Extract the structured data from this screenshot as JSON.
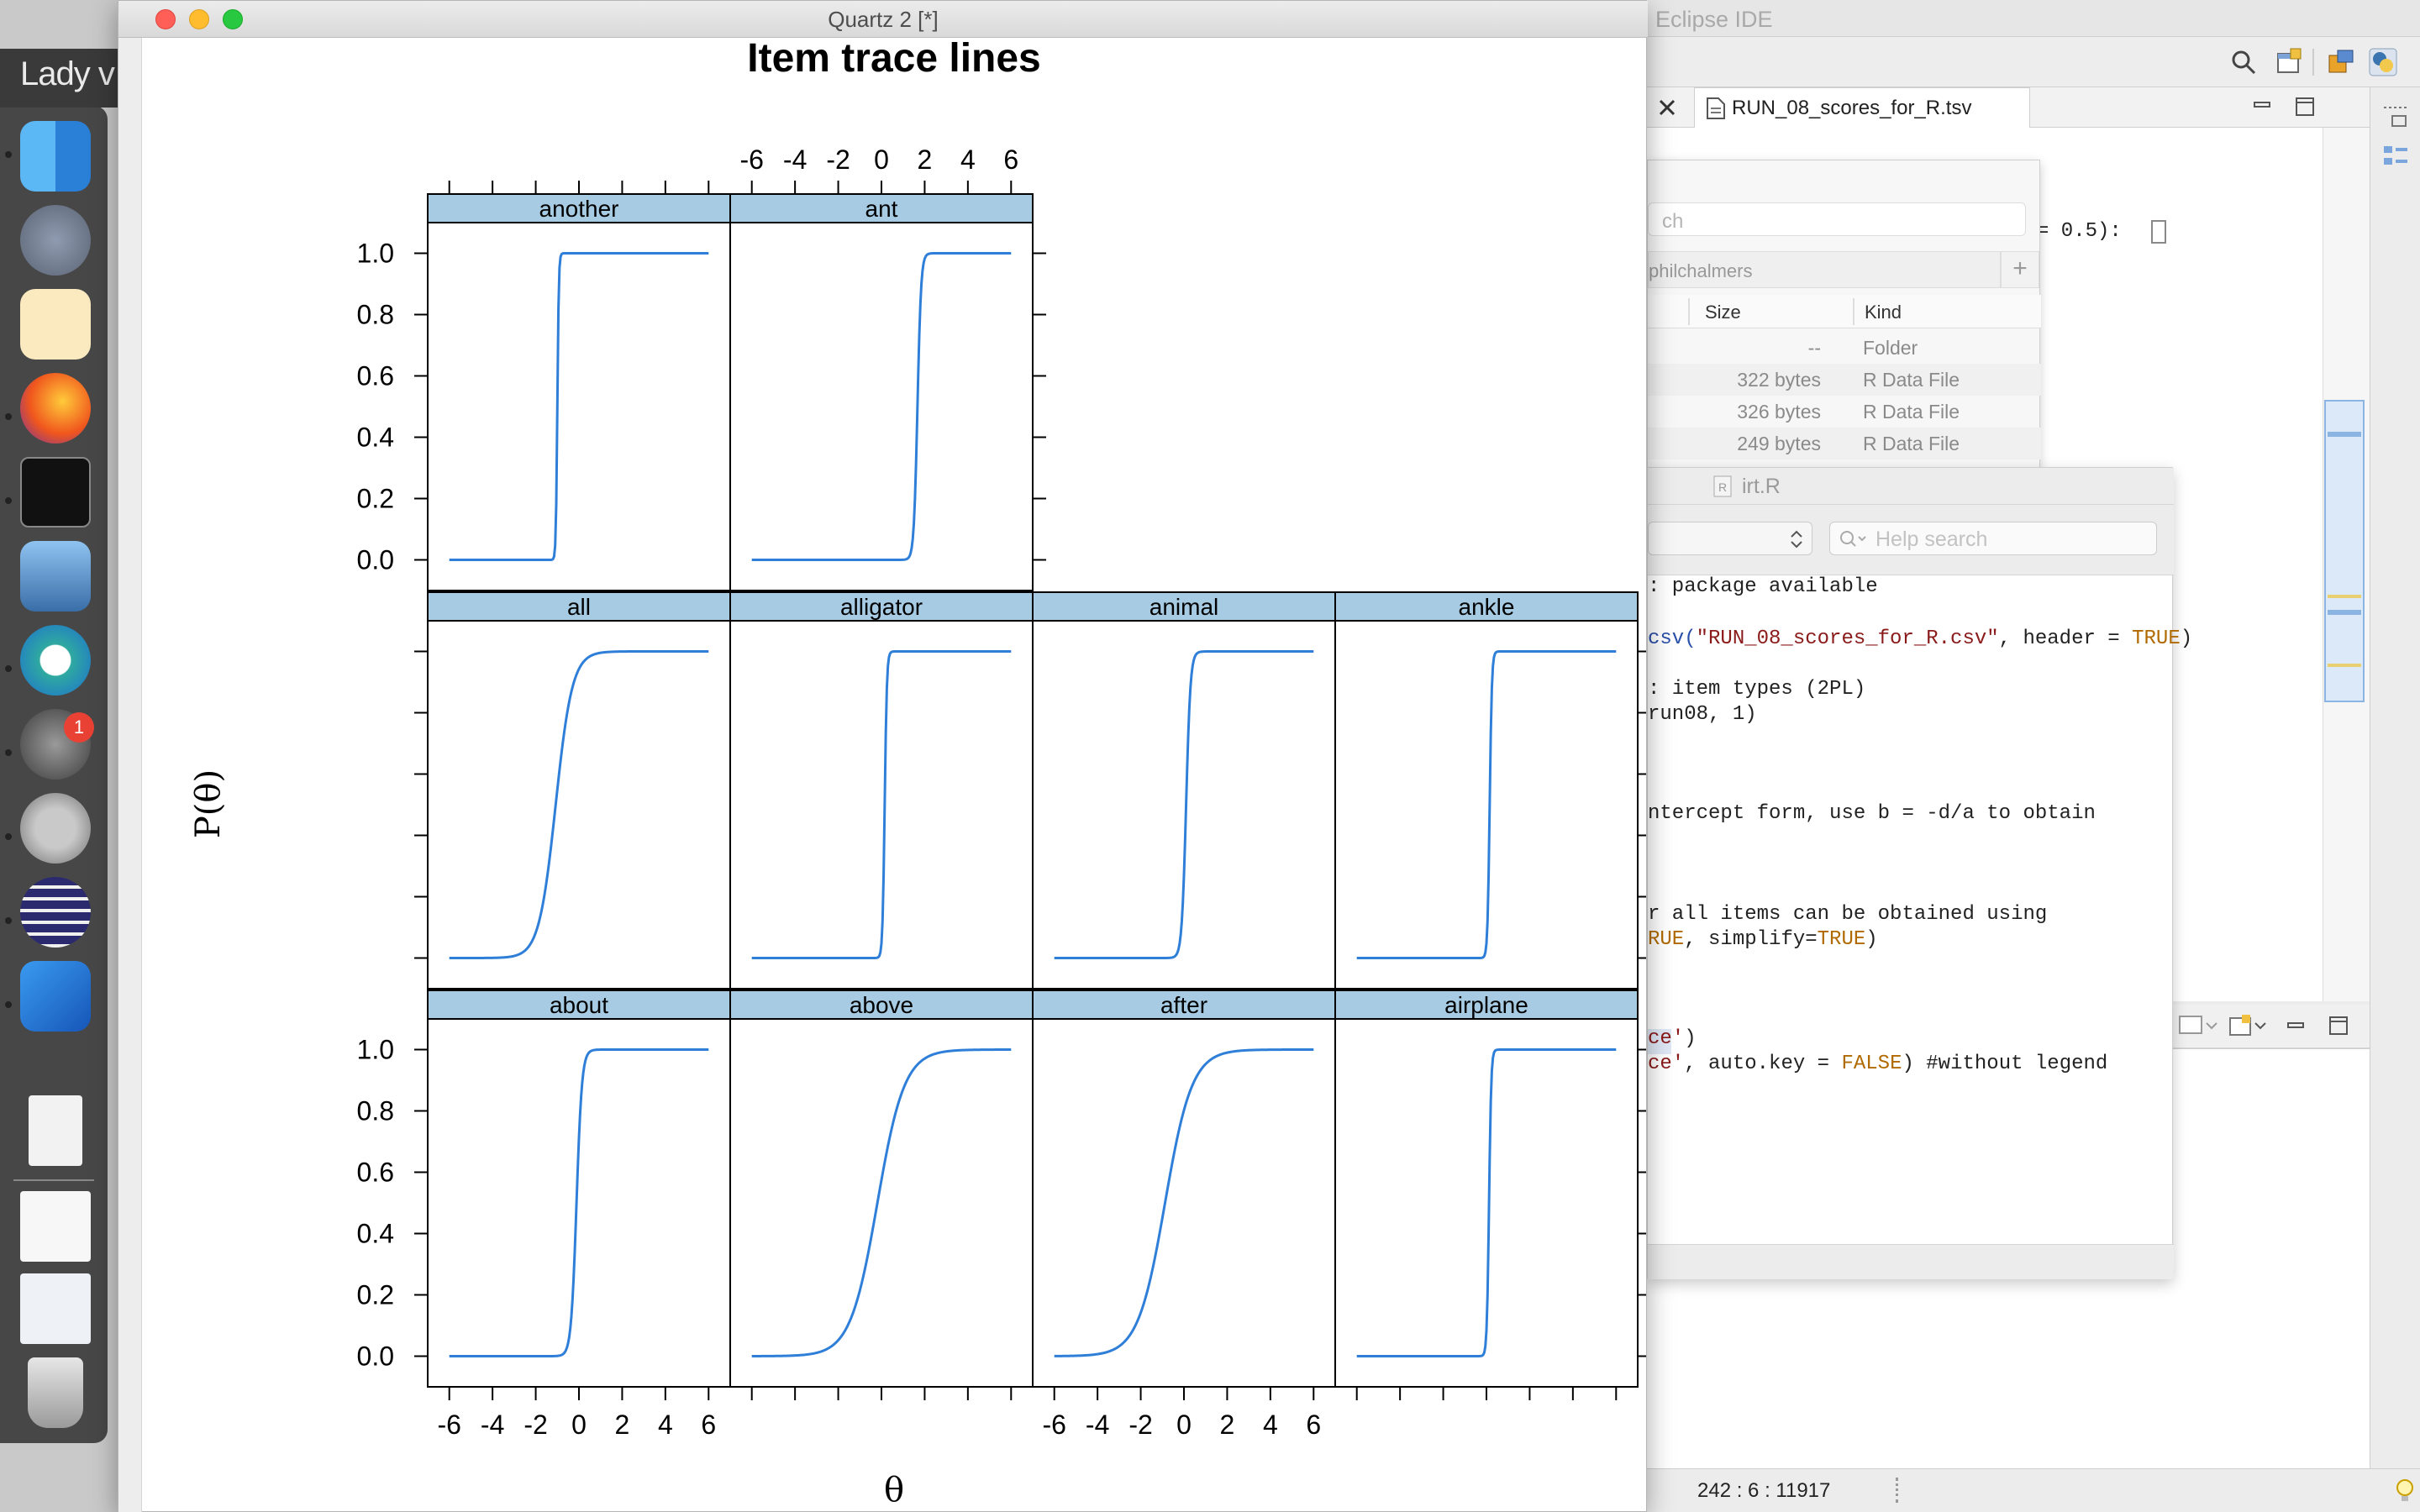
{
  "desktop": {
    "partial_text": "Lady v"
  },
  "quartz": {
    "title": "Quartz 2 [*]",
    "chart_data": {
      "type": "line",
      "title": "Item trace lines",
      "xlabel": "θ",
      "ylabel": "P(θ)",
      "xlim": [
        -7,
        7
      ],
      "ylim": [
        -0.1,
        1.1
      ],
      "x_ticks": [
        "-6",
        "-4",
        "-2",
        "0",
        "2",
        "4",
        "6"
      ],
      "y_ticks": [
        "0.0",
        "0.2",
        "0.4",
        "0.6",
        "0.8",
        "1.0"
      ],
      "grid": false,
      "color": "#2f7fd9",
      "panels": [
        {
          "name": "about",
          "row": 1,
          "col": 1,
          "a": 8.0,
          "d": 0.9
        },
        {
          "name": "above",
          "row": 1,
          "col": 2,
          "a": 1.6,
          "d": 0.3
        },
        {
          "name": "after",
          "row": 1,
          "col": 3,
          "a": 1.6,
          "d": 1.4
        },
        {
          "name": "airplane",
          "row": 1,
          "col": 4,
          "a": 20.0,
          "d": -2.4
        },
        {
          "name": "all",
          "row": 2,
          "col": 1,
          "a": 2.6,
          "d": 2.8
        },
        {
          "name": "alligator",
          "row": 2,
          "col": 2,
          "a": 20.0,
          "d": -3.0
        },
        {
          "name": "animal",
          "row": 2,
          "col": 3,
          "a": 10.0,
          "d": -1.0
        },
        {
          "name": "ankle",
          "row": 2,
          "col": 4,
          "a": 20.0,
          "d": -3.0
        },
        {
          "name": "another",
          "row": 3,
          "col": 1,
          "a": 30.0,
          "d": 30.0
        },
        {
          "name": "ant",
          "row": 3,
          "col": 2,
          "a": 12.0,
          "d": -20.0
        }
      ]
    }
  },
  "eclipse": {
    "title": "Eclipse IDE",
    "editor_tab": "RUN_08_scores_for_R.tsv",
    "code_fragment": "= 0.5):",
    "status": "242 : 6 : 11917"
  },
  "file_browser": {
    "search_placeholder": "ch",
    "path": "philchalmers",
    "add_label": "+",
    "col_size": "Size",
    "col_kind": "Kind",
    "rows": [
      {
        "size": "--",
        "kind": "Folder"
      },
      {
        "size": "322 bytes",
        "kind": "R Data File"
      },
      {
        "size": "326 bytes",
        "kind": "R Data File"
      },
      {
        "size": "249 bytes",
        "kind": "R Data File"
      }
    ]
  },
  "help_window": {
    "title": "irt.R",
    "search_placeholder": "Help search",
    "lines": [
      ": package available",
      "csv(\"RUN_08_scores_for_R.csv\", header = TRUE)",
      ": item types (2PL)",
      "run08, 1)",
      "ntercept form, use b = -d/a to obtain",
      "r all items can be obtained using",
      "RUE, simplify=TRUE)",
      "ce')",
      "ce', auto.key = FALSE) #without legend"
    ]
  },
  "dock": {
    "badge": "1"
  }
}
